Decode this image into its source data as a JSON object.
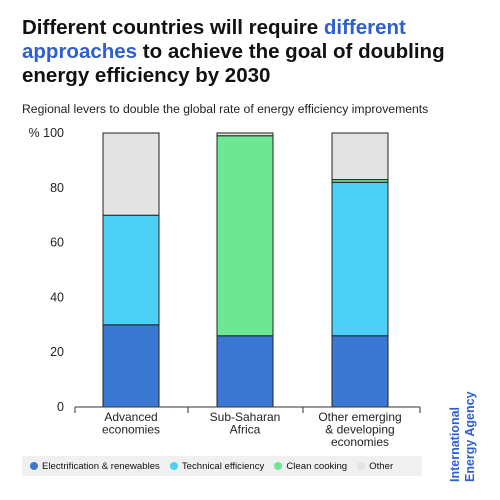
{
  "title": {
    "part1": "Different countries will require ",
    "accent": "different approaches",
    "part2": " to achieve the goal of doubling energy efficiency by 2030"
  },
  "subtitle": "Regional levers to double the global rate of energy efficiency improvements",
  "brand": {
    "line1": "International",
    "line2": "Energy Agency",
    "color": "#2d5fd3"
  },
  "chart_data": {
    "type": "bar",
    "stacked": true,
    "unit_label": "%",
    "ylim": [
      0,
      100
    ],
    "yticks": [
      0,
      20,
      40,
      60,
      80,
      100
    ],
    "categories": [
      [
        "Advanced",
        "economies"
      ],
      [
        "Sub-Saharan",
        "Africa"
      ],
      [
        "Other emerging",
        "& developing",
        "economies"
      ]
    ],
    "series": [
      {
        "name": "Electrification & renewables",
        "color": "#3b78d4",
        "values": [
          30,
          26,
          26
        ]
      },
      {
        "name": "Technical efficiency",
        "color": "#4cd0f5",
        "values": [
          40,
          0,
          56
        ]
      },
      {
        "name": "Clean cooking",
        "color": "#6ee795",
        "values": [
          0,
          73,
          1
        ]
      },
      {
        "name": "Other",
        "color": "#e3e3e3",
        "values": [
          30,
          1,
          17
        ]
      }
    ],
    "legend_position": "bottom",
    "grid": false
  }
}
